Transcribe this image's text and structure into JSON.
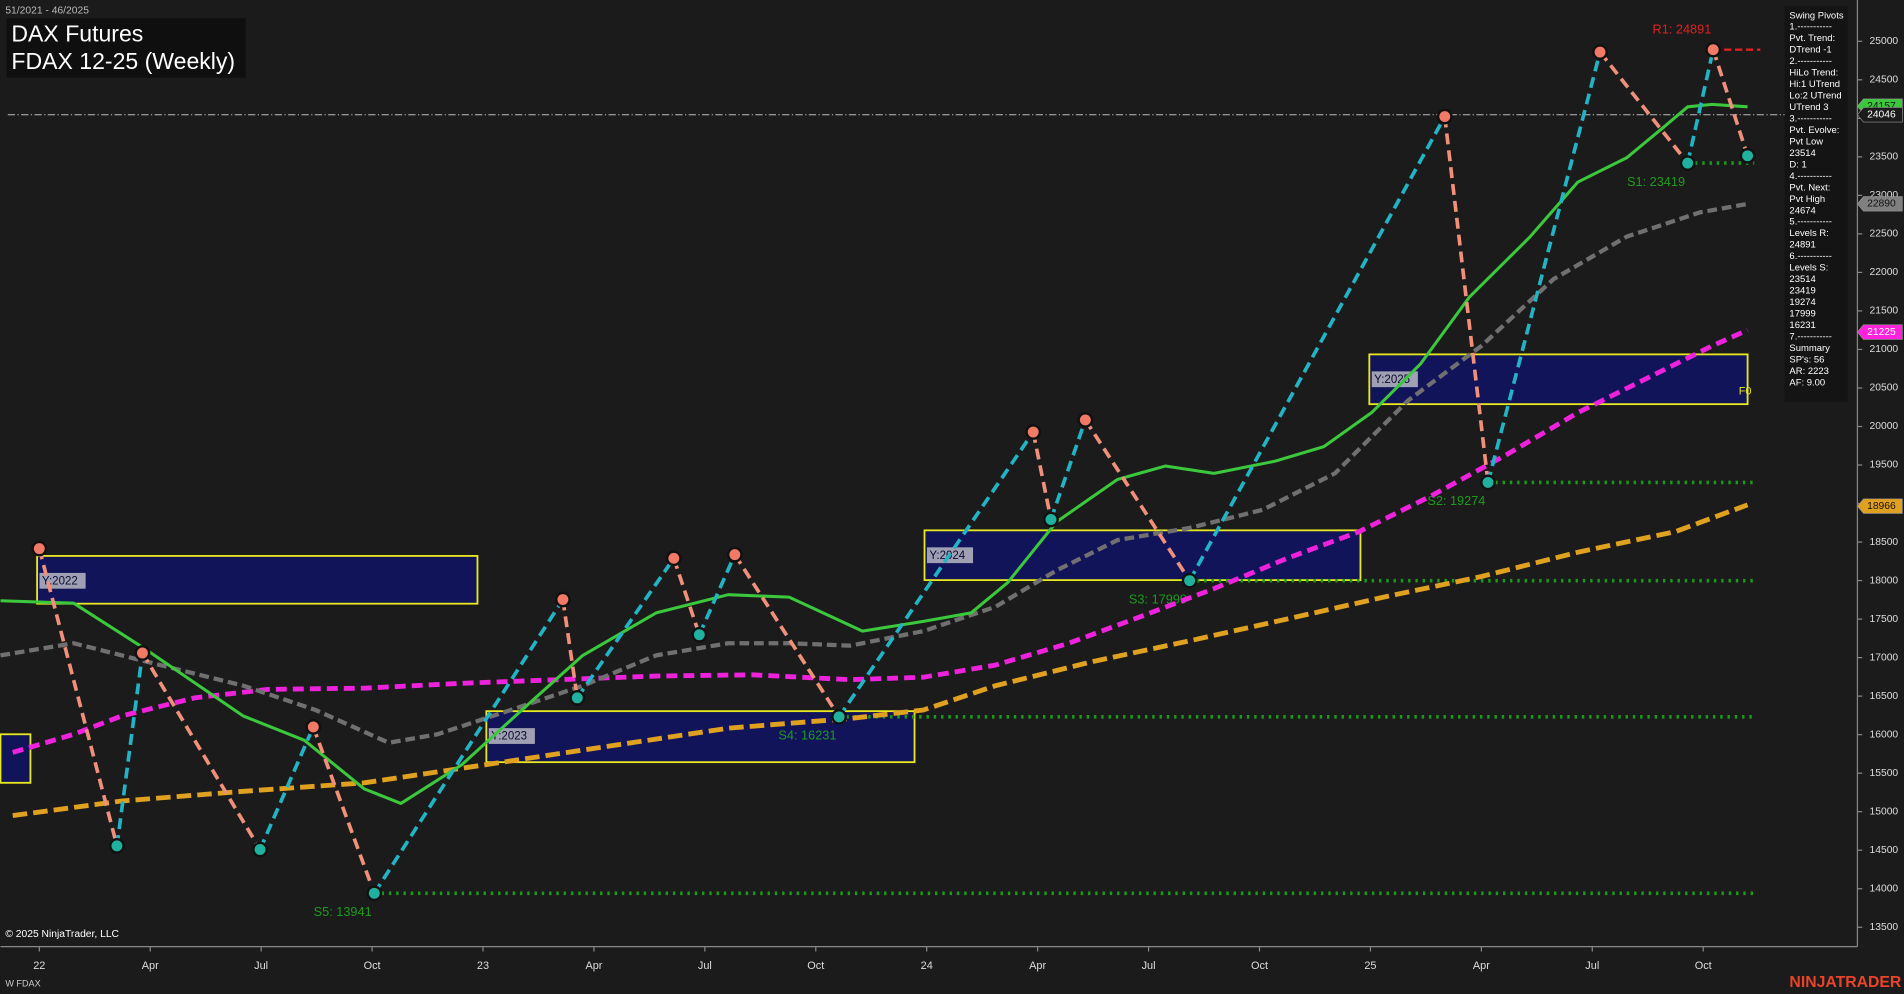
{
  "chart_data": {
    "type": "line",
    "header": "51/2021 - 46/2025",
    "title": "DAX Futures",
    "subtitle": "FDAX 12-25 (Weekly)",
    "copyright": "© 2025 NinjaTrader, LLC",
    "instrument": "W FDAX",
    "brand": "NINJATRADER",
    "xlim": [
      -0.35,
      16.39
    ],
    "xticks": [
      {
        "value": 0,
        "label": "22"
      },
      {
        "value": 1,
        "label": "Apr"
      },
      {
        "value": 2,
        "label": "Jul"
      },
      {
        "value": 3,
        "label": "Oct"
      },
      {
        "value": 4,
        "label": "23"
      },
      {
        "value": 5,
        "label": "Apr"
      },
      {
        "value": 6,
        "label": "Jul"
      },
      {
        "value": 7,
        "label": "Oct"
      },
      {
        "value": 8,
        "label": "24"
      },
      {
        "value": 9,
        "label": "Apr"
      },
      {
        "value": 10,
        "label": "Jul"
      },
      {
        "value": 11,
        "label": "Oct"
      },
      {
        "value": 12,
        "label": "25"
      },
      {
        "value": 13,
        "label": "Apr"
      },
      {
        "value": 14,
        "label": "Jul"
      },
      {
        "value": 15,
        "label": "Oct"
      }
    ],
    "ylim": [
      13248,
      25536
    ],
    "yticks": [
      13500,
      14000,
      14500,
      15000,
      15500,
      16000,
      16500,
      17000,
      17500,
      18000,
      18500,
      19000,
      19500,
      20000,
      20500,
      21000,
      21500,
      22000,
      22500,
      23000,
      23500,
      24000,
      24500,
      25000
    ],
    "series": [
      {
        "color": "#ee22dd",
        "width": 4,
        "dash": "9,5",
        "x": [
          -0.24,
          0.31,
          0.74,
          1.4,
          2.06,
          2.93,
          3.81,
          4.68,
          5.56,
          6.43,
          7.31,
          7.97,
          8.62,
          9.28,
          9.93,
          10.59,
          11.25,
          11.9,
          12.56,
          13.22,
          13.87,
          14.53,
          15.08,
          15.4
        ],
        "values": [
          15769,
          16005,
          16241,
          16478,
          16588,
          16604,
          16667,
          16714,
          16761,
          16777,
          16714,
          16746,
          16903,
          17187,
          17533,
          17895,
          18289,
          18636,
          19108,
          19628,
          20180,
          20652,
          21046,
          21251
        ]
      },
      {
        "color": "#e0a020",
        "width": 4,
        "dash": "12,5",
        "x": [
          -0.24,
          0.74,
          1.84,
          2.93,
          4.03,
          5.12,
          6.21,
          7.31,
          7.97,
          8.62,
          9.5,
          10.37,
          11.25,
          12.12,
          13.0,
          13.87,
          14.75,
          15.4
        ],
        "values": [
          14950,
          15139,
          15265,
          15375,
          15611,
          15848,
          16084,
          16210,
          16320,
          16635,
          16950,
          17218,
          17502,
          17785,
          18053,
          18368,
          18636,
          18982
        ]
      },
      {
        "color": "#707070",
        "width": 3.5,
        "dash": "8,4",
        "x": [
          -0.35,
          0.31,
          0.96,
          1.84,
          2.49,
          3.15,
          3.59,
          4.25,
          4.9,
          5.56,
          6.21,
          6.76,
          7.31,
          7.97,
          8.62,
          9.17,
          9.72,
          10.37,
          11.03,
          11.68,
          12.34,
          13.0,
          13.65,
          14.31,
          14.97,
          15.4
        ],
        "values": [
          17029,
          17187,
          16950,
          16635,
          16320,
          15895,
          16005,
          16320,
          16635,
          17029,
          17187,
          17187,
          17155,
          17344,
          17659,
          18132,
          18526,
          18683,
          18919,
          19392,
          20337,
          21046,
          21912,
          22464,
          22779,
          22890
        ]
      },
      {
        "color": "#3cc83c",
        "width": 2.5,
        "dash": "",
        "x": [
          -0.35,
          0.31,
          0.96,
          1.84,
          2.39,
          2.93,
          3.26,
          3.81,
          4.35,
          4.9,
          5.56,
          6.21,
          6.76,
          7.42,
          7.97,
          8.4,
          8.73,
          9.17,
          9.72,
          10.15,
          10.59,
          11.14,
          11.58,
          12.01,
          12.45,
          12.89,
          13.44,
          13.87,
          14.31,
          14.64,
          14.86,
          15.08,
          15.4
        ],
        "values": [
          17738,
          17706,
          17108,
          16241,
          15926,
          15296,
          15107,
          15611,
          16320,
          17029,
          17580,
          17817,
          17785,
          17344,
          17470,
          17580,
          17974,
          18762,
          19313,
          19487,
          19392,
          19550,
          19739,
          20180,
          20810,
          21677,
          22464,
          23173,
          23488,
          23882,
          24149,
          24181,
          24149
        ]
      }
    ],
    "pivots": {
      "up_color": "#22b4c4",
      "down_color": "#f0907a",
      "high_color": "#f07a66",
      "low_color": "#1fb09e",
      "x": [
        0,
        0.7,
        0.93,
        1.99,
        2.47,
        3.02,
        4.72,
        4.85,
        5.72,
        5.95,
        6.27,
        7.21,
        8.96,
        9.12,
        9.43,
        10.37,
        12.67,
        13.06,
        14.07,
        14.86,
        15.09,
        15.4
      ],
      "values": [
        18415,
        14556,
        17060,
        14509,
        16100,
        13941,
        17754,
        16478,
        18289,
        17297,
        18337,
        16231,
        19928,
        18793,
        20085,
        17999,
        24023,
        19274,
        24860,
        23419,
        24891,
        23514
      ]
    },
    "zones": [
      {
        "x": [
          -0.35,
          -0.08
        ],
        "range": [
          15375,
          16005
        ]
      },
      {
        "label": "Y:2022",
        "x": [
          -0.02,
          3.95
        ],
        "range": [
          17700,
          18320
        ]
      },
      {
        "label": "Y:2023",
        "x": [
          4.03,
          7.89
        ],
        "range": [
          15643,
          16305
        ]
      },
      {
        "label": "Y:2024",
        "x": [
          7.98,
          11.91
        ],
        "range": [
          18006,
          18652
        ]
      },
      {
        "label": "Y:2025",
        "x": [
          11.99,
          15.4
        ],
        "range": [
          20290,
          20936
        ]
      }
    ],
    "annotation": {
      "text": "F0",
      "x": 15.32,
      "y": 20450
    },
    "levels": [
      {
        "label": "R1: 24891",
        "value": 24891,
        "x_start": 15.09,
        "color": "#e02020",
        "kind": "resistance"
      },
      {
        "label": "S1: 23419",
        "value": 23419,
        "x_start": 14.86,
        "color": "#1a9a1a",
        "kind": "support"
      },
      {
        "label": "S2: 19274",
        "value": 19274,
        "x_start": 13.06,
        "color": "#1a9a1a",
        "kind": "support"
      },
      {
        "label": "S3: 17999",
        "value": 17999,
        "x_start": 10.37,
        "color": "#1a9a1a",
        "kind": "support"
      },
      {
        "label": "S4: 16231",
        "value": 16231,
        "x_start": 7.21,
        "color": "#1a9a1a",
        "kind": "support"
      },
      {
        "label": "S5: 13941",
        "value": 13941,
        "x_start": 3.02,
        "color": "#1a9a1a",
        "kind": "support"
      }
    ],
    "current_price": 24046,
    "price_tags": [
      {
        "value": 24157,
        "color": "#3cc83c",
        "text_color": "#111111"
      },
      {
        "value": 24046,
        "color": "#1b1b1b",
        "text_color": "#ffffff"
      },
      {
        "value": 22890,
        "color": "#808080",
        "text_color": "#111111"
      },
      {
        "value": 21225,
        "color": "#ff22dd",
        "text_color": "#ffffff"
      },
      {
        "value": 18966,
        "color": "#e0a020",
        "text_color": "#111111"
      }
    ],
    "panel": {
      "lines": [
        "Swing Pivots",
        "1.-----------",
        "Pvt. Trend:",
        "DTrend -1",
        "2.-----------",
        "HiLo Trend:",
        "Hi:1 UTrend",
        "Lo:2 UTrend",
        "UTrend 3",
        "3.-----------",
        "Pvt. Evolve:",
        "Pvt Low",
        "23514",
        "D: 1",
        "4.-----------",
        "Pvt. Next:",
        "Pvt High",
        "24674",
        "5.-----------",
        "Levels R:",
        "24891",
        "6.-----------",
        "Levels S:",
        "23514",
        "23419",
        "19274",
        "17999",
        "16231",
        "7.-----------",
        "Summary",
        "SP's: 56",
        "AR: 2223",
        "AF: 9.00"
      ]
    }
  }
}
